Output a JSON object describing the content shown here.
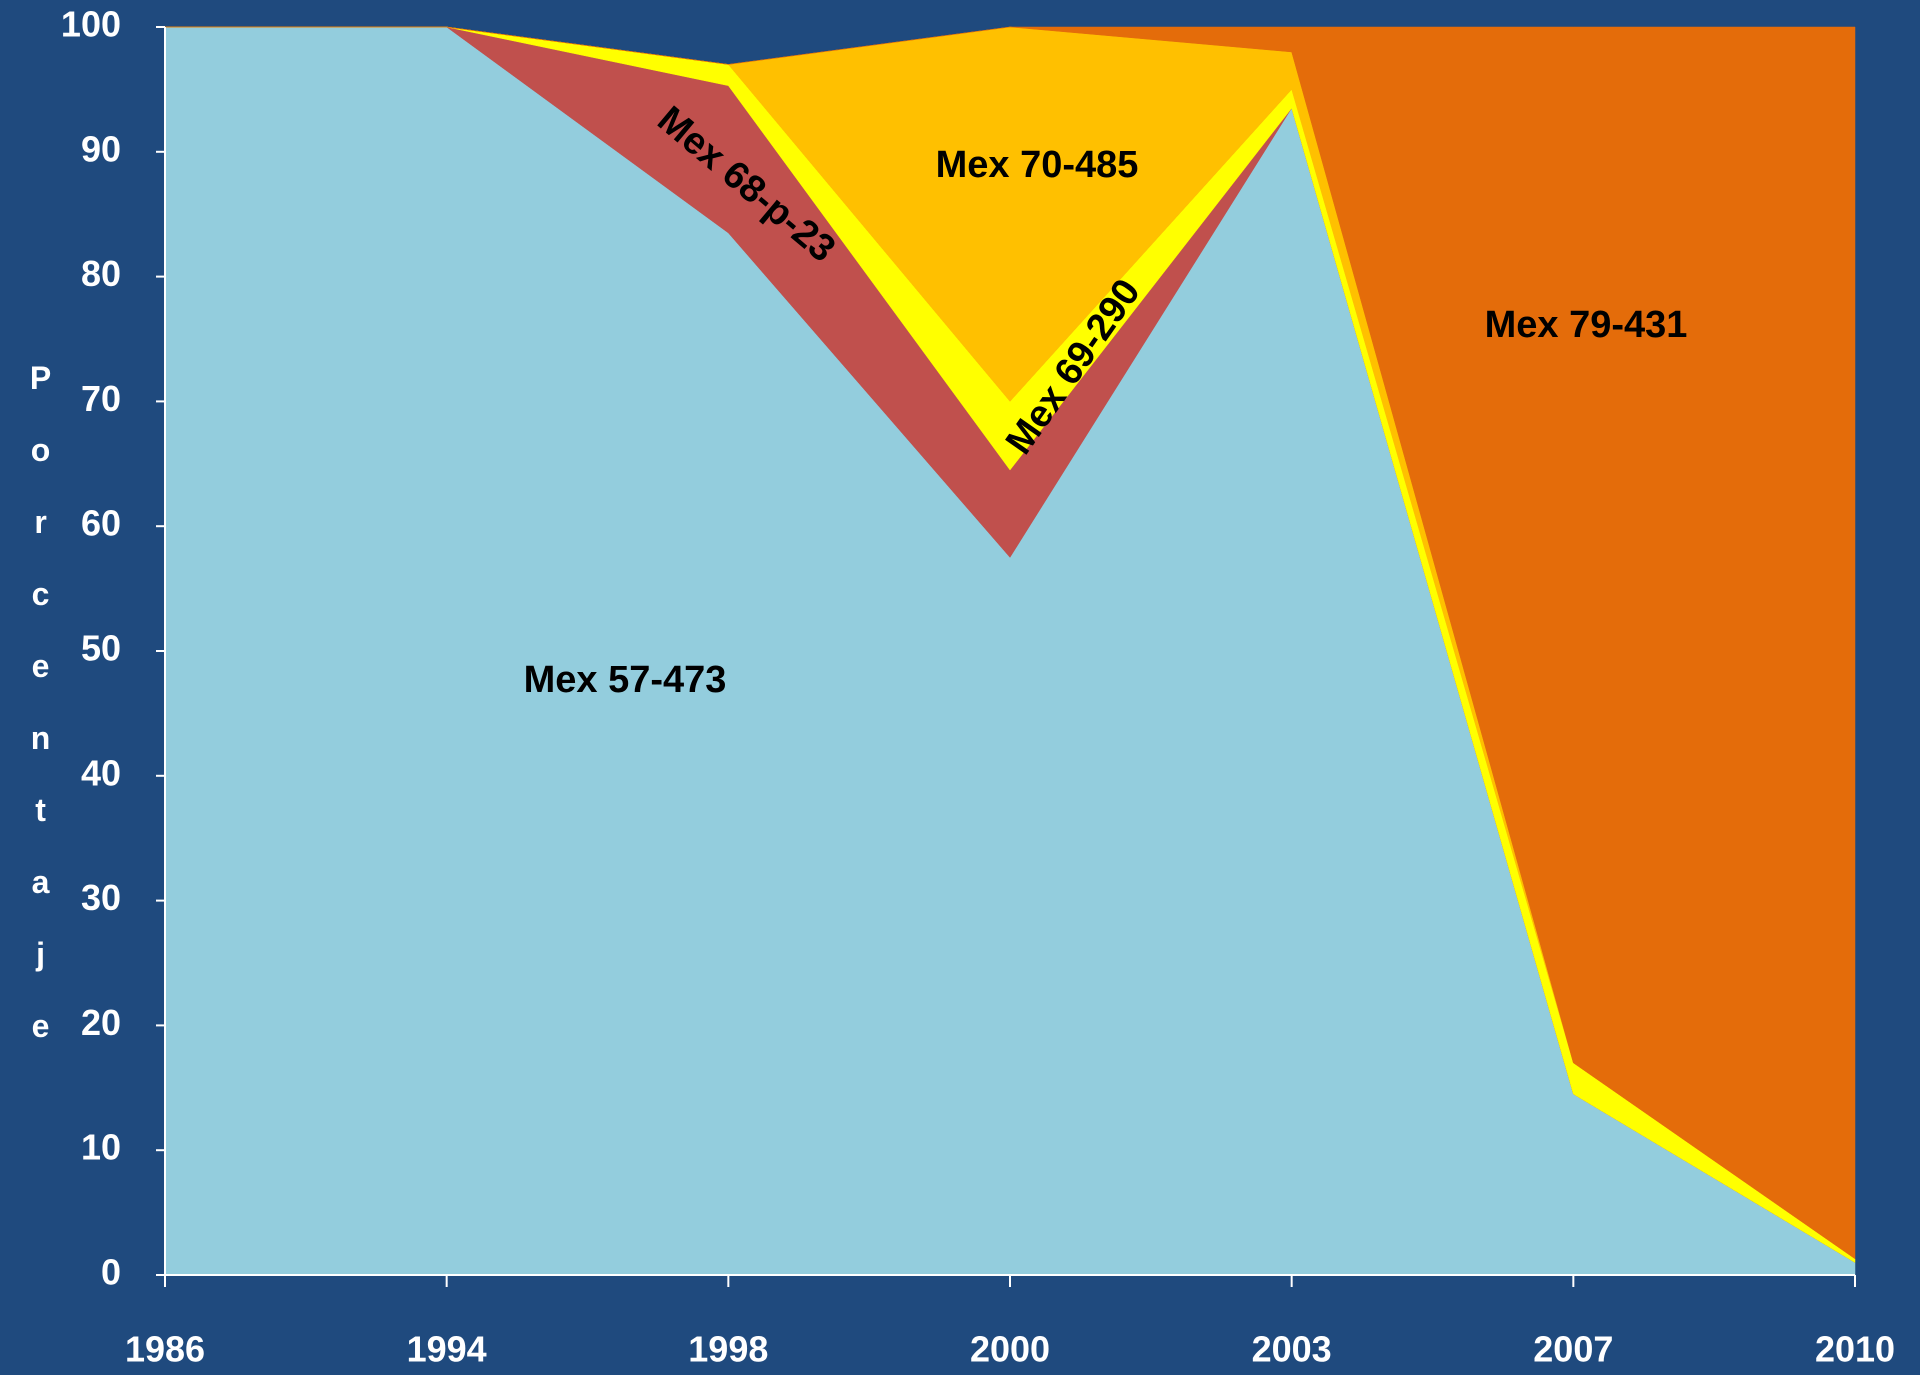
{
  "chart_data": {
    "type": "stacked_area",
    "y_label": "Porcentaje",
    "categories": [
      "1986",
      "1994",
      "1998",
      "2000",
      "2003",
      "2007",
      "2010"
    ],
    "series": [
      {
        "name": "Mex 57-473",
        "color": "#93cddd",
        "values": [
          100,
          100,
          83.5,
          57.5,
          93.5,
          14.5,
          1
        ]
      },
      {
        "name": "Mex 68-p-23",
        "color": "#c0504d",
        "values": [
          0,
          0,
          11.8,
          7,
          0,
          0,
          0
        ]
      },
      {
        "name": "Mex 69-290",
        "color": "#ffff00",
        "values": [
          0,
          0,
          1.7,
          5.5,
          1.5,
          2.5,
          0.3
        ]
      },
      {
        "name": "Mex 70-485",
        "color": "#ffc000",
        "values": [
          0,
          0,
          0,
          30,
          3,
          0,
          0
        ]
      },
      {
        "name": "Mex 79-431",
        "color": "#e46c0a",
        "values": [
          0,
          0,
          0,
          0,
          2,
          83,
          98.7
        ]
      }
    ],
    "ylim": [
      0,
      100
    ],
    "yticks": [
      0,
      10,
      20,
      30,
      40,
      50,
      60,
      70,
      80,
      90,
      100
    ]
  }
}
